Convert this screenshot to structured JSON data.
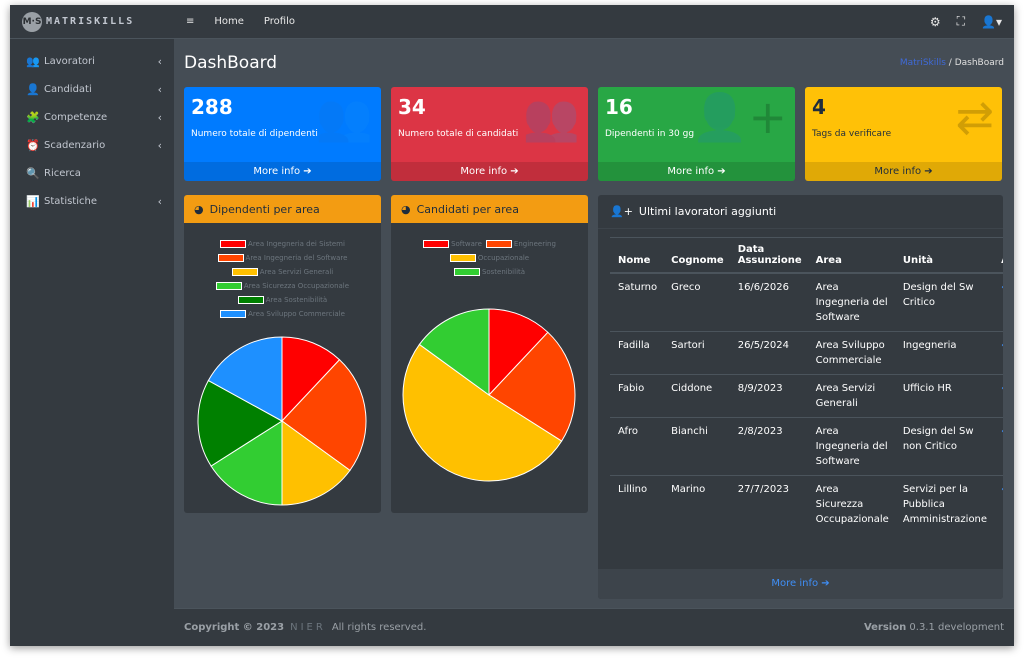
{
  "brand": {
    "logo": "M·S",
    "name": "MATRISKILLS"
  },
  "sidebar": {
    "items": [
      {
        "label": "Lavoratori",
        "icon": "users-icon",
        "glyph": "👥",
        "chevron": "‹"
      },
      {
        "label": "Candidati",
        "icon": "user-tie-icon",
        "glyph": "👤",
        "chevron": "‹"
      },
      {
        "label": "Competenze",
        "icon": "puzzle-icon",
        "glyph": "🧩",
        "chevron": "‹"
      },
      {
        "label": "Scadenzario",
        "icon": "clock-icon",
        "glyph": "⏰",
        "chevron": "‹"
      },
      {
        "label": "Ricerca",
        "icon": "search-icon",
        "glyph": "🔍",
        "chevron": ""
      },
      {
        "label": "Statistiche",
        "icon": "bar-chart-icon",
        "glyph": "📊",
        "chevron": "‹"
      }
    ]
  },
  "topbar": {
    "menu_glyph": "≡",
    "home": "Home",
    "profilo": "Profilo",
    "gear_glyph": "⚙",
    "expand_glyph": "⛶",
    "user_glyph": "👤▾"
  },
  "page": {
    "title": "DashBoard",
    "crumb_link": "MatriSkills",
    "crumb_sep": " / ",
    "crumb_current": "DashBoard"
  },
  "boxes": [
    {
      "number": "288",
      "label": "Numero totale di dipendenti",
      "more": "More info ➔",
      "icon": "users-icon",
      "glyph": "👥",
      "color": "#007bff"
    },
    {
      "number": "34",
      "label": "Numero totale di candidati",
      "more": "More info ➔",
      "icon": "users-icon",
      "glyph": "👥",
      "color": "#dc3545"
    },
    {
      "number": "16",
      "label": "Dipendenti in 30 gg",
      "more": "More info ➔",
      "icon": "user-plus-icon",
      "glyph": "👤+",
      "color": "#28a745"
    },
    {
      "number": "4",
      "label": "Tags da verificare",
      "more": "More info ➔",
      "icon": "exchange-icon",
      "glyph": "⇄",
      "color": "#ffc107"
    }
  ],
  "pie1": {
    "title": "Dipendenti per area",
    "legend": [
      {
        "label": "Area Ingegneria dei Sistemi",
        "color": "#ff0000"
      },
      {
        "label": "Area Ingegneria del Software",
        "color": "#ff4500"
      },
      {
        "label": "Area Servizi Generali",
        "color": "#ffc000"
      },
      {
        "label": "Area Sicurezza Occupazionale",
        "color": "#32cd32"
      },
      {
        "label": "Area Sostenibilità",
        "color": "#008000"
      },
      {
        "label": "Area Sviluppo Commerciale",
        "color": "#1e90ff"
      }
    ],
    "values": [
      12,
      23,
      15,
      16,
      17,
      17
    ]
  },
  "pie2": {
    "title": "Candidati per area",
    "legend": [
      {
        "label": "Software",
        "color": "#ff0000"
      },
      {
        "label": "Engineering",
        "color": "#ff4500"
      },
      {
        "label": "Occupazionale",
        "color": "#ffc000"
      },
      {
        "label": "Sostenibilità",
        "color": "#32cd32"
      }
    ],
    "values": [
      12,
      22,
      51,
      15
    ]
  },
  "table": {
    "title": "Ultimi lavoratori aggiunti",
    "headers": [
      "Nome",
      "Cognome",
      "Data Assunzione",
      "Area",
      "Unità",
      "A:"
    ],
    "rows": [
      {
        "nome": "Saturno",
        "cognome": "Greco",
        "data": "16/6/2026",
        "area": "Area Ingegneria del Software",
        "unita": "Design del Sw Critico"
      },
      {
        "nome": "Fadilla",
        "cognome": "Sartori",
        "data": "26/5/2024",
        "area": "Area Sviluppo Commerciale",
        "unita": "Ingegneria"
      },
      {
        "nome": "Fabio",
        "cognome": "Ciddone",
        "data": "8/9/2023",
        "area": "Area Servizi Generali",
        "unita": "Ufficio HR"
      },
      {
        "nome": "Afro",
        "cognome": "Bianchi",
        "data": "2/8/2023",
        "area": "Area Ingegneria del Software",
        "unita": "Design del Sw non Critico"
      },
      {
        "nome": "Lillino",
        "cognome": "Marino",
        "data": "27/7/2023",
        "area": "Area Sicurezza Occupazionale",
        "unita": "Servizi per la Pubblica Amministrazione"
      }
    ],
    "row_action": "‹",
    "more": "More info ➔"
  },
  "footer": {
    "copyright": "Copyright © 2023",
    "company": "NIER",
    "rights": "All rights reserved.",
    "version_label": "Version",
    "version": "0.3.1 development"
  }
}
